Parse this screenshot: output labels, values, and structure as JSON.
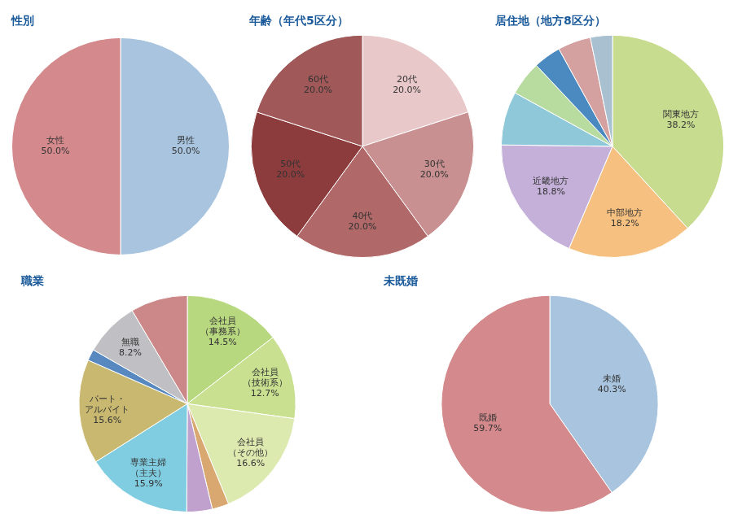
{
  "chart_data": [
    {
      "type": "pie",
      "title": "性別",
      "categories": [
        "男性\n50.0%",
        "女性\n50.0%"
      ],
      "values": [
        50.0,
        50.0
      ],
      "colors": [
        "#a8c4df",
        "#d48a8c"
      ]
    },
    {
      "type": "pie",
      "title": "年齢（年代5区分）",
      "categories": [
        "20代\n20.0%",
        "30代\n20.0%",
        "40代\n20.0%",
        "50代\n20.0%",
        "60代\n20.0%"
      ],
      "values": [
        20.0,
        20.0,
        20.0,
        20.0,
        20.0
      ],
      "colors": [
        "#e8c8c8",
        "#c89090",
        "#b06868",
        "#8c3c3c",
        "#a05858"
      ]
    },
    {
      "type": "pie",
      "title": "居住地（地方8区分）",
      "categories": [
        "関東地方\n38.2%",
        "中部地方\n18.2%",
        "近畿地方\n18.8%",
        null,
        null,
        null,
        null,
        null
      ],
      "values": [
        38.2,
        18.2,
        18.8,
        7.8,
        5.0,
        4.0,
        4.8,
        3.2
      ],
      "colors": [
        "#c8dc90",
        "#f5c080",
        "#c4b0d8",
        "#8fc8d8",
        "#b8dca0",
        "#4a8ac0",
        "#d4a0a0",
        "#a8c0d0"
      ]
    },
    {
      "type": "pie",
      "title": "職業",
      "categories": [
        "会社員\n（事務系）\n14.5%",
        "会社員\n（技術系）\n12.7%",
        "会社員\n（その他）\n16.6%",
        null,
        null,
        "専業主婦\n（主夫）\n15.9%",
        "パート・\nアルバイト\n15.6%",
        null,
        "無職\n8.2%",
        null
      ],
      "values": [
        14.5,
        12.7,
        16.6,
        2.5,
        3.8,
        15.9,
        15.6,
        1.7,
        8.2,
        8.5
      ],
      "colors": [
        "#b8d880",
        "#c8e090",
        "#dceab0",
        "#d8a870",
        "#c0a0cc",
        "#80cce0",
        "#c8b870",
        "#5888c0",
        "#c0c0c4",
        "#cc8888"
      ]
    },
    {
      "type": "pie",
      "title": "未既婚",
      "categories": [
        "未婚\n40.3%",
        "既婚\n59.7%"
      ],
      "values": [
        40.3,
        59.7
      ],
      "colors": [
        "#a8c4df",
        "#d48a8c"
      ]
    }
  ]
}
